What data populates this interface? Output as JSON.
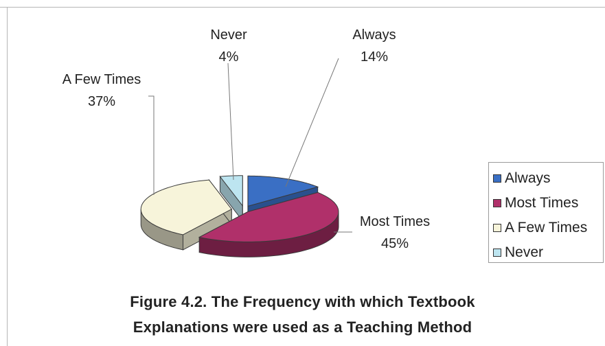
{
  "chart_data": {
    "type": "pie",
    "style": "3d-exploded",
    "categories": [
      "Always",
      "Most Times",
      "A Few Times",
      "Never"
    ],
    "values": [
      14,
      45,
      37,
      4
    ],
    "labels": [
      {
        "name": "Always",
        "percent": "14%"
      },
      {
        "name": "Most Times",
        "percent": "45%"
      },
      {
        "name": "A Few Times",
        "percent": "37%"
      },
      {
        "name": "Never",
        "percent": "4%"
      }
    ],
    "colors": [
      "#3a6fc4",
      "#b0306a",
      "#f7f4da",
      "#bde5f0"
    ],
    "legend_position": "right",
    "legend": [
      "Always",
      "Most Times",
      "A Few Times",
      "Never"
    ]
  },
  "caption": {
    "line1": "Figure 4.2. The Frequency with which Textbook",
    "line2": "Explanations  were used as a Teaching Method"
  }
}
